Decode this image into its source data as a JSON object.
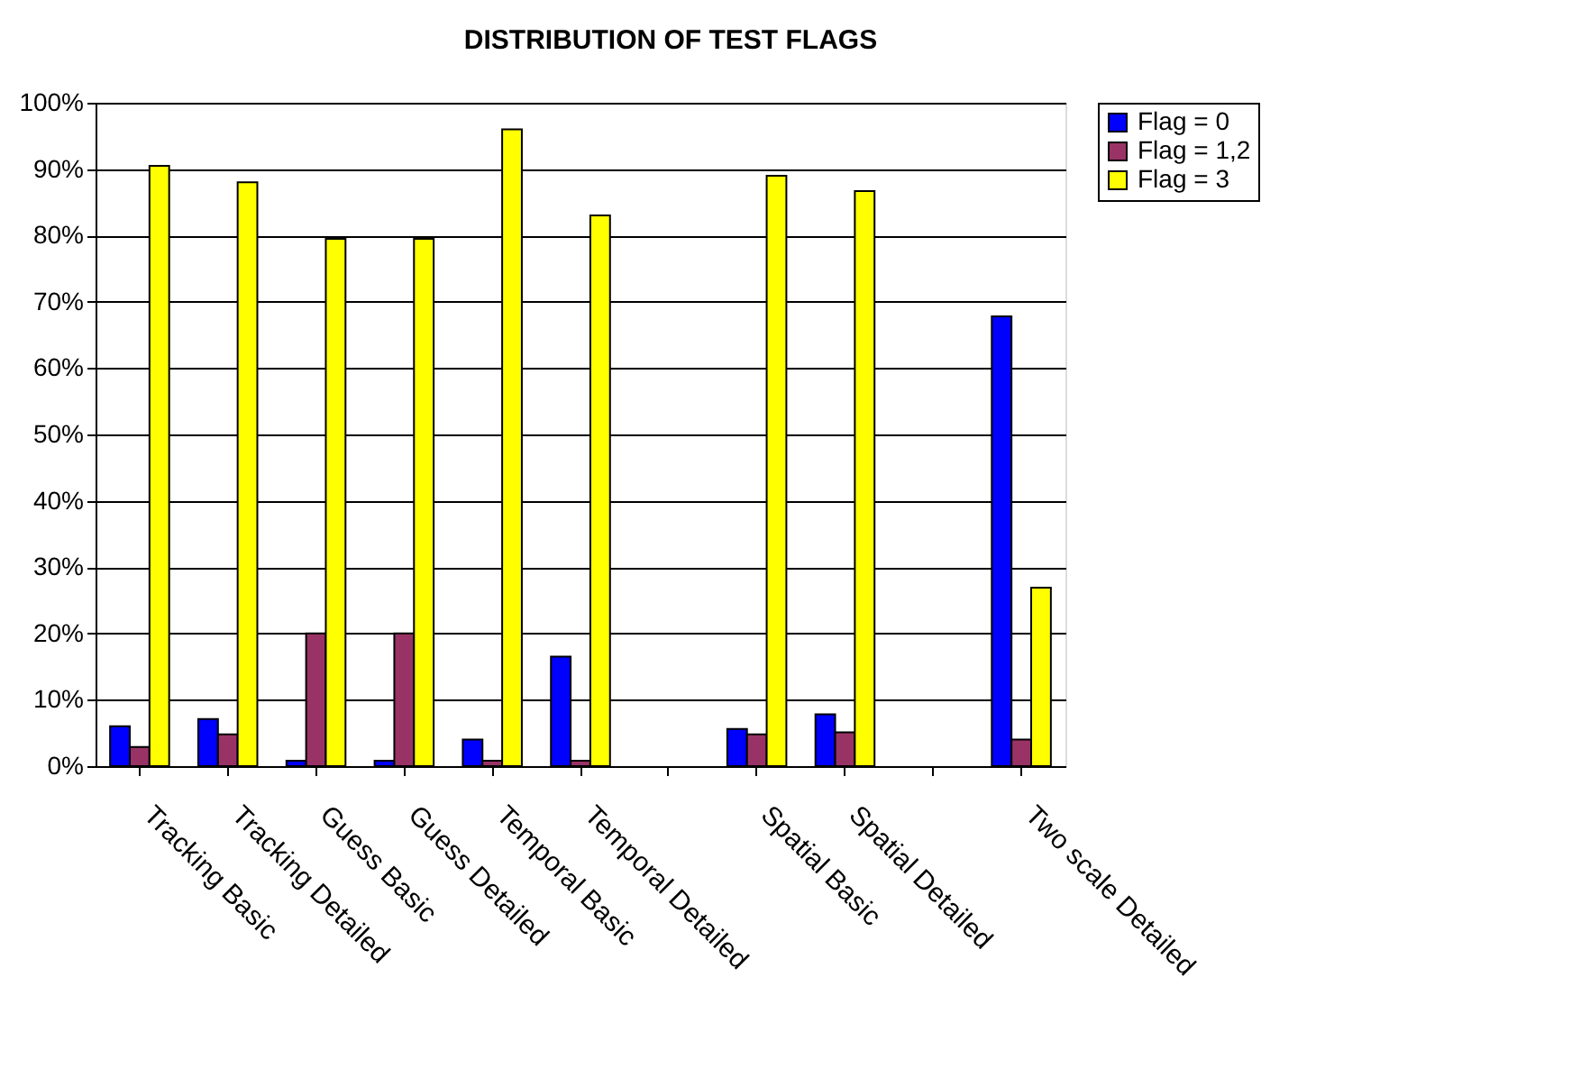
{
  "chart_data": {
    "type": "bar",
    "title": "DISTRIBUTION OF TEST FLAGS",
    "categories": [
      "Tracking Basic",
      "Tracking Detailed",
      "Guess Basic",
      "Guess Detailed",
      "Temporal Basic",
      "Temporal Detailed",
      null,
      "Spatial Basic",
      "Spatial Detailed",
      null,
      "Two scale Detailed"
    ],
    "series": [
      {
        "name": "Flag = 0",
        "color": "#0000ff",
        "values": [
          6.0,
          7.1,
          0.8,
          0.8,
          4.0,
          16.5,
          null,
          5.6,
          7.8,
          null,
          67.8
        ]
      },
      {
        "name": "Flag = 1,2",
        "color": "#993366",
        "values": [
          2.9,
          4.8,
          20,
          20,
          0.8,
          0.8,
          null,
          4.8,
          5.1,
          null,
          4.0
        ]
      },
      {
        "name": "Flag = 3",
        "color": "#ffff00",
        "values": [
          90.5,
          88,
          79.5,
          79.5,
          96,
          83,
          null,
          89,
          86.7,
          null,
          26.9
        ]
      }
    ],
    "ylim": [
      0,
      100
    ],
    "yticks": [
      {
        "value": 0,
        "label": "0%"
      },
      {
        "value": 10,
        "label": "10%"
      },
      {
        "value": 20,
        "label": "20%"
      },
      {
        "value": 30,
        "label": "30%"
      },
      {
        "value": 40,
        "label": "40%"
      },
      {
        "value": 50,
        "label": "50%"
      },
      {
        "value": 60,
        "label": "60%"
      },
      {
        "value": 70,
        "label": "70%"
      },
      {
        "value": 80,
        "label": "80%"
      },
      {
        "value": 90,
        "label": "90%"
      },
      {
        "value": 100,
        "label": "100%"
      }
    ],
    "grid": "y",
    "legend": "right"
  }
}
